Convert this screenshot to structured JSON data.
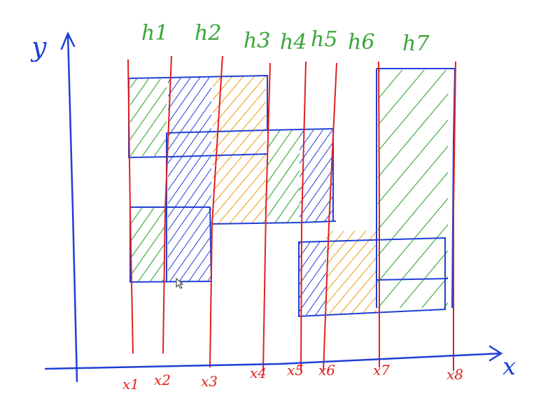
{
  "axes": {
    "x_label": "x",
    "y_label": "y"
  },
  "top_labels": [
    "h1",
    "h2",
    "h3",
    "h4",
    "h5",
    "h6",
    "h7"
  ],
  "bottom_labels": [
    "x1",
    "x2",
    "x3",
    "x4",
    "x5",
    "x6",
    "x7",
    "x8"
  ],
  "colors": {
    "axis": "#1f3fd6",
    "sweep_lines": "#e01f1f",
    "rect_outline": "#1f3fd6",
    "top_labels": "#3aa53a",
    "bottom_labels": "#e01f1f",
    "hatch_green": "#2fa72f",
    "hatch_blue": "#1f3fd6",
    "hatch_orange": "#f0a020"
  }
}
